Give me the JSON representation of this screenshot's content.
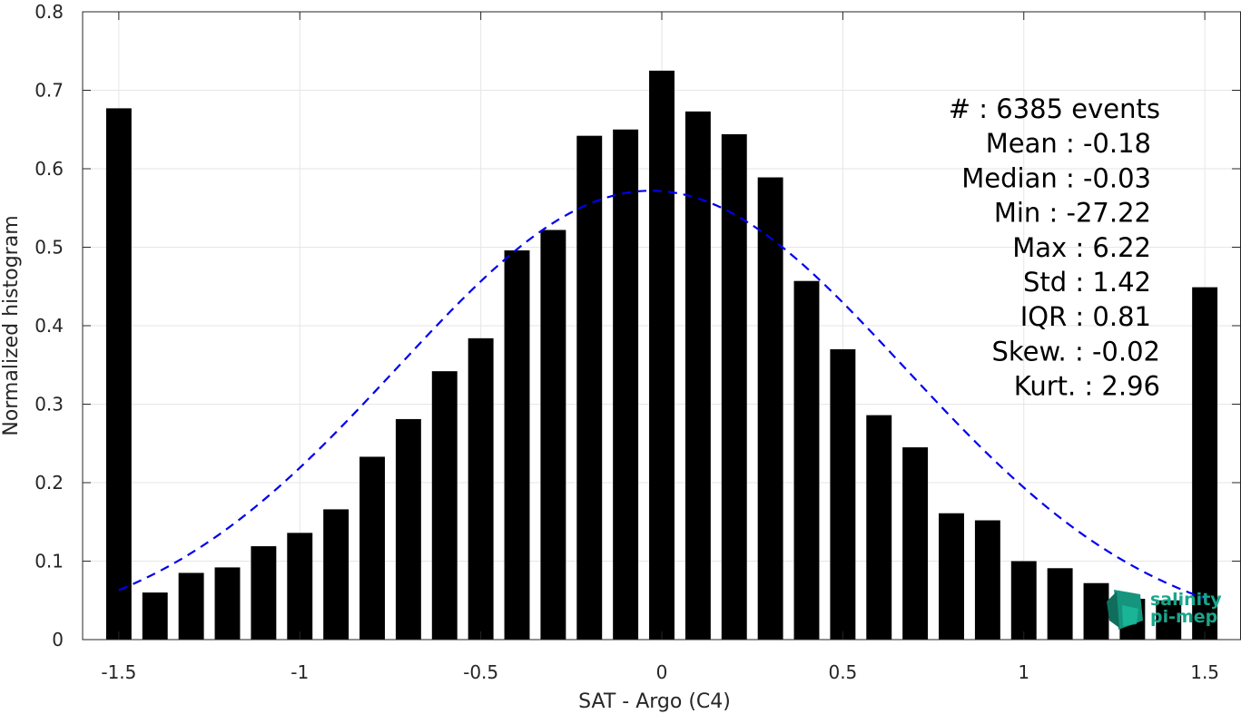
{
  "chart_data": {
    "type": "bar",
    "xlabel": "SAT - Argo (C4)",
    "ylabel": "Normalized histogram",
    "xlim": [
      -1.6,
      1.6
    ],
    "ylim": [
      0,
      0.8
    ],
    "grid": true,
    "x_ticks": [
      -1.5,
      -1,
      -0.5,
      0,
      0.5,
      1,
      1.5
    ],
    "x_tick_labels": [
      "-1.5",
      "-1",
      "-0.5",
      "0",
      "0.5",
      "1",
      "1.5"
    ],
    "y_ticks": [
      0,
      0.1,
      0.2,
      0.3,
      0.4,
      0.5,
      0.6,
      0.7,
      0.8
    ],
    "y_tick_labels": [
      "0",
      "0.1",
      "0.2",
      "0.3",
      "0.4",
      "0.5",
      "0.6",
      "0.7",
      "0.8"
    ],
    "bin_width": 0.07,
    "x": [
      -1.5,
      -1.4,
      -1.3,
      -1.2,
      -1.1,
      -1.0,
      -0.9,
      -0.8,
      -0.7,
      -0.6,
      -0.5,
      -0.4,
      -0.3,
      -0.2,
      -0.1,
      0.0,
      0.1,
      0.2,
      0.3,
      0.4,
      0.5,
      0.6,
      0.7,
      0.8,
      0.9,
      1.0,
      1.1,
      1.2,
      1.3,
      1.4,
      1.5
    ],
    "values": [
      0.677,
      0.06,
      0.085,
      0.092,
      0.119,
      0.136,
      0.166,
      0.233,
      0.281,
      0.342,
      0.384,
      0.496,
      0.522,
      0.642,
      0.65,
      0.725,
      0.673,
      0.644,
      0.589,
      0.457,
      0.37,
      0.286,
      0.245,
      0.161,
      0.152,
      0.1,
      0.091,
      0.072,
      0.052,
      0.05,
      0.449
    ],
    "fit_curve": {
      "style": "dashed",
      "color": "#0000ee",
      "mean": -0.03,
      "sigma": 0.7,
      "peak": 0.572,
      "x_range": [
        -1.5,
        1.5
      ]
    },
    "bar_color": "#000000",
    "stats": [
      "#  : 6385 events",
      "Mean : -0.18",
      "Median : -0.03",
      "Min : -27.22",
      "Max : 6.22",
      "Std : 1.42",
      "IQR : 0.81",
      "Skew. : -0.02",
      "Kurt. : 2.96"
    ],
    "logo": [
      "salinity",
      "pi-mep"
    ]
  }
}
